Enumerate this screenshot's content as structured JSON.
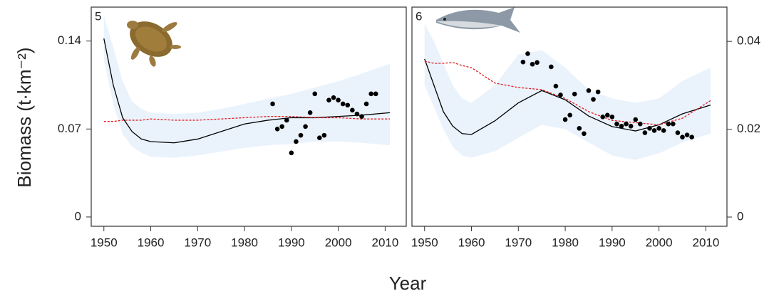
{
  "ylabel": "Biomass (t·km⁻²)",
  "xlabel": "Year",
  "chart_data": [
    {
      "type": "line",
      "panel_label": "5",
      "y_axis_side": "left",
      "xlim": [
        1947.3,
        2014.5
      ],
      "ylim": [
        -0.0074,
        0.167
      ],
      "xticks": [
        1950,
        1960,
        1970,
        1980,
        1990,
        2000,
        2010
      ],
      "yticks": [
        0,
        0.07,
        0.14
      ],
      "x": [
        1950,
        1952,
        1954,
        1956,
        1958,
        1960,
        1965,
        1970,
        1975,
        1980,
        1985,
        1990,
        1995,
        2000,
        2005,
        2011
      ],
      "band": {
        "color": "#eaf3fc",
        "upper": [
          0.16,
          0.135,
          0.108,
          0.092,
          0.086,
          0.083,
          0.082,
          0.083,
          0.086,
          0.09,
          0.094,
          0.098,
          0.103,
          0.108,
          0.114,
          0.122
        ],
        "lower": [
          0.125,
          0.09,
          0.066,
          0.056,
          0.051,
          0.048,
          0.047,
          0.049,
          0.052,
          0.055,
          0.057,
          0.058,
          0.06,
          0.06,
          0.059,
          0.057
        ]
      },
      "series": [
        {
          "color": "#000000",
          "style": "solid",
          "values": [
            0.142,
            0.105,
            0.079,
            0.068,
            0.062,
            0.06,
            0.059,
            0.062,
            0.068,
            0.074,
            0.077,
            0.079,
            0.079,
            0.08,
            0.081,
            0.083
          ]
        },
        {
          "color": "#e31a1c",
          "style": "dashed",
          "values": [
            0.076,
            0.076,
            0.077,
            0.077,
            0.077,
            0.078,
            0.077,
            0.077,
            0.078,
            0.079,
            0.08,
            0.08,
            0.079,
            0.079,
            0.078,
            0.078
          ]
        }
      ],
      "points": {
        "color": "#000000",
        "x": [
          1986,
          1987,
          1988,
          1989,
          1990,
          1991,
          1992,
          1993,
          1994,
          1995,
          1996,
          1997,
          1998,
          1999,
          2000,
          2001,
          2002,
          2003,
          2004,
          2005,
          2006,
          2007,
          2008
        ],
        "values": [
          0.09,
          0.07,
          0.072,
          0.077,
          0.051,
          0.06,
          0.065,
          0.072,
          0.083,
          0.098,
          0.063,
          0.065,
          0.093,
          0.095,
          0.093,
          0.09,
          0.089,
          0.085,
          0.082,
          0.08,
          0.09,
          0.098,
          0.098
        ]
      }
    },
    {
      "type": "line",
      "panel_label": "6",
      "y_axis_side": "right",
      "xlim": [
        1947.3,
        2014.5
      ],
      "ylim": [
        -0.0021,
        0.0478
      ],
      "xticks": [
        1950,
        1960,
        1970,
        1980,
        1990,
        2000,
        2010
      ],
      "yticks": [
        0,
        0.02,
        0.04
      ],
      "x": [
        1950,
        1952,
        1954,
        1956,
        1958,
        1960,
        1965,
        1970,
        1975,
        1980,
        1985,
        1990,
        1995,
        2000,
        2005,
        2011
      ],
      "band": {
        "color": "#eaf3fc",
        "upper": [
          0.044,
          0.04,
          0.035,
          0.03,
          0.027,
          0.026,
          0.03,
          0.037,
          0.038,
          0.034,
          0.029,
          0.027,
          0.026,
          0.027,
          0.031,
          0.034
        ],
        "lower": [
          0.03,
          0.025,
          0.02,
          0.016,
          0.014,
          0.0135,
          0.015,
          0.018,
          0.021,
          0.02,
          0.017,
          0.014,
          0.013,
          0.0145,
          0.017,
          0.019
        ]
      },
      "series": [
        {
          "color": "#000000",
          "style": "solid",
          "values": [
            0.036,
            0.03,
            0.024,
            0.0207,
            0.019,
            0.0188,
            0.0219,
            0.026,
            0.0288,
            0.0267,
            0.023,
            0.0206,
            0.0196,
            0.021,
            0.0235,
            0.0255
          ]
        },
        {
          "color": "#e31a1c",
          "style": "dashed",
          "values": [
            0.0355,
            0.035,
            0.035,
            0.0352,
            0.0345,
            0.034,
            0.0305,
            0.0295,
            0.029,
            0.027,
            0.024,
            0.022,
            0.0215,
            0.021,
            0.0225,
            0.0265
          ]
        }
      ],
      "points": {
        "color": "#000000",
        "x": [
          1971,
          1972,
          1973,
          1974,
          1977,
          1978,
          1979,
          1980,
          1981,
          1982,
          1983,
          1984,
          1985,
          1986,
          1987,
          1988,
          1989,
          1990,
          1991,
          1992,
          1993,
          1994,
          1995,
          1996,
          1997,
          1998,
          1999,
          2000,
          2001,
          2002,
          2003,
          2004,
          2005,
          2006,
          2007
        ],
        "values": [
          0.0353,
          0.0372,
          0.0348,
          0.0352,
          0.0342,
          0.0298,
          0.0278,
          0.0222,
          0.0232,
          0.028,
          0.0202,
          0.019,
          0.0288,
          0.0268,
          0.0285,
          0.0228,
          0.0232,
          0.0228,
          0.0212,
          0.0207,
          0.0212,
          0.0207,
          0.0222,
          0.0212,
          0.0192,
          0.0202,
          0.0197,
          0.0202,
          0.0197,
          0.0212,
          0.0212,
          0.0192,
          0.0182,
          0.0187,
          0.0182
        ]
      }
    }
  ]
}
